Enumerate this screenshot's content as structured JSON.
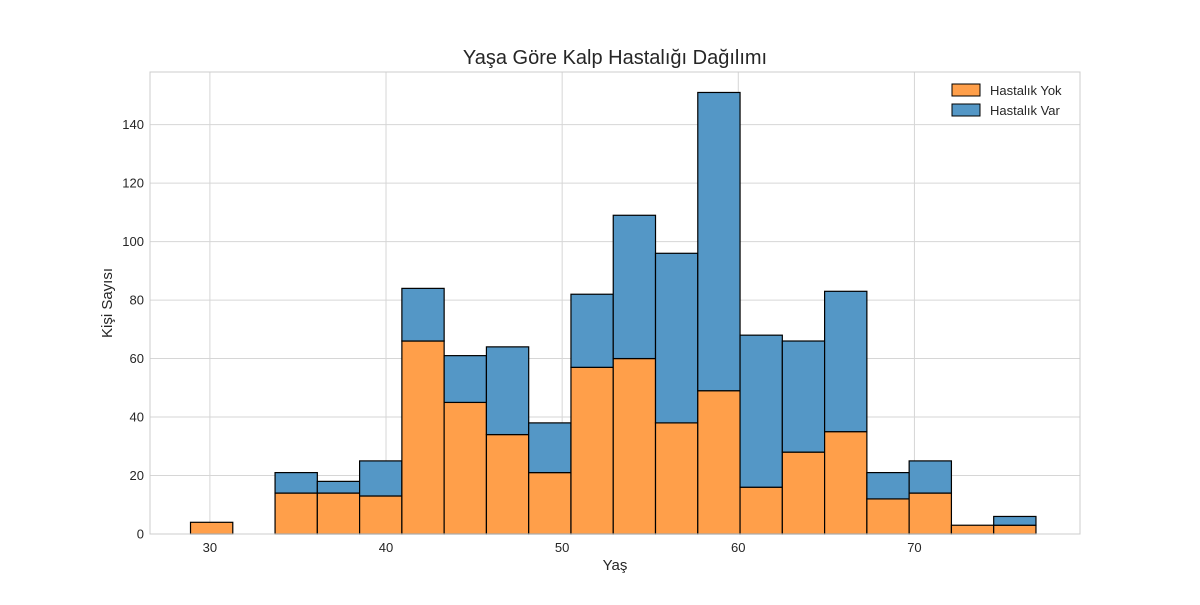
{
  "chart_data": {
    "type": "bar",
    "stacked": true,
    "title": "Yaşa Göre Kalp Hastalığı Dağılımı",
    "xlabel": "Yaş",
    "ylabel": "Kişi Sayısı",
    "xlim": [
      26.6,
      79.4
    ],
    "ylim": [
      0,
      158
    ],
    "x_ticks": [
      30,
      40,
      50,
      60,
      70
    ],
    "y_ticks": [
      0,
      20,
      40,
      60,
      80,
      100,
      120,
      140
    ],
    "grid": true,
    "legend_position": "top-right",
    "bin_edges": [
      28.9,
      31.3,
      33.7,
      36.1,
      38.5,
      40.9,
      43.3,
      45.7,
      48.1,
      50.5,
      52.9,
      55.3,
      57.7,
      60.1,
      62.5,
      64.9,
      67.3,
      69.7,
      72.1,
      74.5,
      76.9
    ],
    "series": [
      {
        "name": "Hastalık Yok",
        "color": "#ff9f4a",
        "values": [
          4,
          0,
          14,
          14,
          13,
          66,
          45,
          34,
          21,
          57,
          60,
          38,
          49,
          16,
          28,
          35,
          12,
          14,
          3,
          3
        ]
      },
      {
        "name": "Hastalık Var",
        "color": "#5497c6",
        "values": [
          0,
          0,
          7,
          4,
          12,
          18,
          16,
          30,
          17,
          25,
          49,
          58,
          102,
          52,
          38,
          48,
          9,
          11,
          0,
          3
        ]
      }
    ]
  }
}
